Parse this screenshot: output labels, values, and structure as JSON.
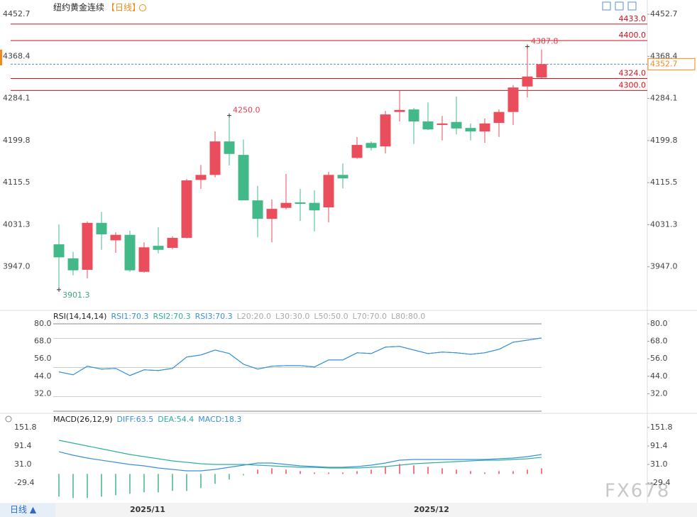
{
  "header": {
    "title": "纽约黄金连续",
    "period": "【日线】"
  },
  "chart_data": [
    {
      "type": "candlestick",
      "categories": [
        null,
        null,
        null,
        null,
        null,
        "2025/11",
        null,
        null,
        null,
        null,
        null,
        null,
        null,
        null,
        null,
        null,
        null,
        null,
        null,
        null,
        null,
        null,
        null,
        null,
        null,
        "2025/12",
        null,
        null,
        null,
        null,
        null,
        null,
        null,
        null,
        null
      ],
      "open": [
        3992,
        3964,
        3941,
        4035,
        4000,
        4011,
        3937,
        3989,
        3985,
        4005,
        4121,
        4131,
        4198,
        4171,
        4080,
        4043,
        4065,
        4076,
        4075,
        4066,
        4131,
        4165,
        4195,
        4188,
        4257,
        4262,
        4238,
        4231,
        4237,
        4225,
        4218,
        4235,
        4257,
        4308,
        4326
      ],
      "high": [
        4032,
        3977,
        4038,
        4057,
        4016,
        4019,
        3996,
        4026,
        4008,
        4123,
        4151,
        4218,
        4250,
        4202,
        4109,
        4082,
        4133,
        4103,
        4100,
        4137,
        4154,
        4207,
        4198,
        4259,
        4299,
        4265,
        4276,
        4249,
        4288,
        4234,
        4244,
        4262,
        4311,
        4387.8,
        4382
      ],
      "low": [
        3901.3,
        3930,
        3924,
        3981,
        3975,
        3937,
        3935,
        3974,
        3982,
        4004,
        4103,
        4126,
        4150,
        4080,
        4006,
        3996,
        4062,
        4039,
        4018,
        4036,
        4104,
        4163,
        4180,
        4174,
        4238,
        4193,
        4221,
        4200,
        4212,
        4200,
        4195,
        4207,
        4231,
        4286,
        4325
      ],
      "close": [
        3966,
        3940,
        4035,
        4012,
        4011,
        3940,
        3986,
        3981,
        4005,
        4120,
        4131,
        4198,
        4173,
        4080,
        4043,
        4063,
        4075,
        4073,
        4060,
        4131,
        4124,
        4191,
        4185,
        4252,
        4261,
        4238,
        4222,
        4234,
        4224,
        4218,
        4234,
        4257,
        4306,
        4328,
        4352.7
      ],
      "up_color": "#ea4d5b",
      "down_color": "#43b888",
      "ylim": [
        3862.7,
        4452.7
      ],
      "yticks": [
        4452.7,
        4368.4,
        4284.1,
        4199.8,
        4115.5,
        4031.3,
        {
          "value": 3947,
          "label": "3947.0"
        }
      ],
      "levels": [
        {
          "value": 4433,
          "label": "4433.0"
        },
        {
          "value": 4400,
          "label": "4400.0"
        },
        {
          "value": 4324,
          "label": "4324.0"
        },
        {
          "value": 4300,
          "label": "4300.0"
        }
      ],
      "level_color": "#d0101e",
      "last_price": 4352.7,
      "last_color": "#f08a1c",
      "annotations": [
        {
          "value": 4250,
          "label": "4250.0",
          "color": "#e04050"
        },
        {
          "value": 4387.8,
          "label": "4387.8",
          "color": "#e04050"
        },
        {
          "value": 3901.3,
          "label": "3901.3",
          "color": "#3aa878"
        }
      ]
    },
    {
      "type": "line",
      "title": "RSI(14,14,14)",
      "series": [
        {
          "name": "RSI1:70.3",
          "color": "#3a8fe0",
          "values": [
            47.0,
            45.0,
            50.9,
            48.9,
            49.4,
            44.5,
            48.4,
            47.9,
            49.4,
            57.2,
            58.6,
            62.0,
            59.6,
            52.3,
            48.9,
            50.9,
            51.3,
            51.3,
            50.4,
            55.2,
            55.2,
            60.1,
            59.6,
            64.0,
            64.5,
            62.0,
            59.6,
            60.6,
            60.1,
            59.1,
            60.1,
            62.5,
            67.4,
            68.8,
            70.3
          ]
        },
        {
          "name": "RSI2:70.3",
          "color": "#2fb0a0",
          "values": [
            47.0,
            45.0,
            50.9,
            48.9,
            49.4,
            44.5,
            48.4,
            47.9,
            49.4,
            57.2,
            58.6,
            62.0,
            59.6,
            52.3,
            48.9,
            50.9,
            51.3,
            51.3,
            50.4,
            55.2,
            55.2,
            60.1,
            59.6,
            64.0,
            64.5,
            62.0,
            59.6,
            60.6,
            60.1,
            59.1,
            60.1,
            62.5,
            67.4,
            68.8,
            70.3
          ]
        },
        {
          "name": "RSI3:70.3",
          "color": "#3a8fe0",
          "values": [
            47.0,
            45.0,
            50.9,
            48.9,
            49.4,
            44.5,
            48.4,
            47.9,
            49.4,
            57.2,
            58.6,
            62.0,
            59.6,
            52.3,
            48.9,
            50.9,
            51.3,
            51.3,
            50.4,
            55.2,
            55.2,
            60.1,
            59.6,
            64.0,
            64.5,
            62.0,
            59.6,
            60.6,
            60.1,
            59.1,
            60.1,
            62.5,
            67.4,
            68.8,
            70.3
          ]
        }
      ],
      "levels": [
        {
          "value": 20,
          "label": "L20:20.0"
        },
        {
          "value": 30,
          "label": "L30:30.0"
        },
        {
          "value": 50,
          "label": "L50:50.0"
        },
        {
          "value": 70,
          "label": "L70:70.0"
        },
        {
          "value": 80,
          "label": "L80:80.0"
        }
      ],
      "level_color": "#aaaaaa",
      "ylim": [
        20,
        80
      ],
      "yticks": [
        {
          "value": 80,
          "label": "80.0"
        },
        {
          "value": 68,
          "label": "68.0"
        },
        {
          "value": 56,
          "label": "56.0"
        },
        {
          "value": 44,
          "label": "44.0"
        },
        {
          "value": 32,
          "label": "32.0"
        }
      ]
    },
    {
      "type": "macd",
      "title": "MACD(26,12,9)",
      "series": [
        {
          "name": "DIFF:63.5",
          "color": "#3a8fe0",
          "values": [
            72.8,
            61.2,
            51.9,
            44.9,
            38.0,
            31.0,
            26.4,
            19.4,
            14.8,
            10.1,
            10.1,
            14.8,
            21.7,
            28.7,
            35.7,
            35.7,
            31.0,
            26.4,
            24.0,
            21.7,
            21.7,
            24.0,
            28.7,
            35.7,
            44.9,
            47.3,
            47.3,
            47.3,
            47.3,
            47.3,
            47.3,
            49.6,
            51.9,
            56.6,
            63.5
          ]
        },
        {
          "name": "DEA:54.4",
          "color": "#2fb0a0",
          "values": [
            110.0,
            100.7,
            91.4,
            82.1,
            72.8,
            63.5,
            56.6,
            49.6,
            42.6,
            38.0,
            33.3,
            31.0,
            31.0,
            31.0,
            28.7,
            26.4,
            24.0,
            21.7,
            21.7,
            19.4,
            19.4,
            19.4,
            21.7,
            24.0,
            28.7,
            33.3,
            35.7,
            38.0,
            40.3,
            42.6,
            44.9,
            44.9,
            47.3,
            49.6,
            54.4
          ]
        },
        {
          "name": "MACD:18.3",
          "color": "#3a8fe0",
          "up_color": "#ea4d5b",
          "down_color": "#43b888",
          "values": [
            -74.4,
            -79,
            -79,
            -74.4,
            -69.6,
            -65,
            -60.4,
            -60.4,
            -55.6,
            -55.8,
            -46.4,
            -32.4,
            -18.6,
            -4.6,
            14,
            18.6,
            14,
            9.4,
            4.6,
            4.6,
            4.6,
            9.2,
            14,
            23.4,
            32.4,
            28,
            23.2,
            18.6,
            14,
            9.4,
            4.8,
            9.4,
            9.2,
            14,
            18.3
          ]
        }
      ],
      "ylim": [
        -94.4,
        179.7
      ],
      "yticks": [
        151.8,
        91.4,
        {
          "value": 31,
          "label": "31.0"
        },
        -29.4
      ]
    }
  ],
  "footer": {
    "period_button": "日线 ▲",
    "watermark": "FX678"
  }
}
